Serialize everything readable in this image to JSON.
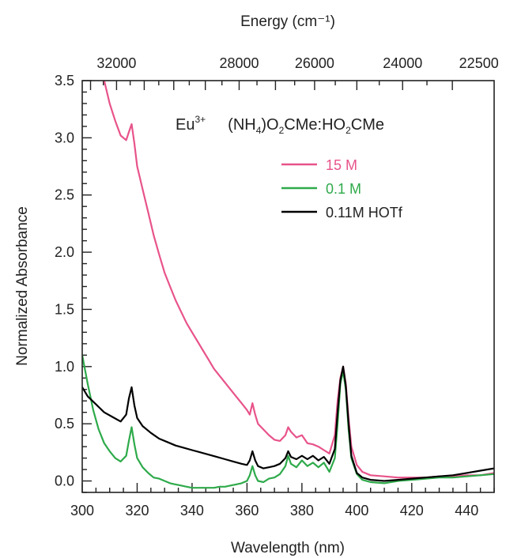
{
  "chart_data": {
    "type": "line",
    "xlabel": "Wavelength (nm)",
    "ylabel": "Normalized Absorbance",
    "x2label": "Energy (cm⁻¹)",
    "xlim": [
      300,
      450
    ],
    "ylim": [
      -0.1,
      3.5
    ],
    "x_ticks": [
      300,
      320,
      340,
      360,
      380,
      400,
      420,
      440
    ],
    "y_ticks": [
      0.0,
      0.5,
      1.0,
      1.5,
      2.0,
      2.5,
      3.0,
      3.5
    ],
    "y_tick_labels": [
      "0.0",
      "0.5",
      "1.0",
      "1.5",
      "2.0",
      "2.5",
      "3.0",
      "3.5"
    ],
    "x2_ticks": [
      32000,
      28000,
      26000,
      24000,
      22500
    ],
    "grid": false,
    "legend_position": "top-right",
    "annotation": {
      "element": "Eu",
      "charge": "3+",
      "formula_parts": [
        "(NH",
        "4",
        ")O",
        "2",
        "CMe:HO",
        "2",
        "CMe"
      ]
    },
    "series": [
      {
        "name": "15 M",
        "color": "#e8538a",
        "x": [
          308,
          310,
          312,
          314,
          316,
          317,
          318,
          319,
          320,
          322,
          324,
          326,
          328,
          330,
          332,
          334,
          336,
          338,
          340,
          342,
          344,
          346,
          348,
          350,
          352,
          354,
          356,
          358,
          360,
          361,
          362,
          363,
          364,
          366,
          368,
          370,
          372,
          374,
          375,
          376,
          378,
          380,
          382,
          384,
          386,
          388,
          390,
          392,
          393,
          394,
          395,
          396,
          397,
          398,
          400,
          402,
          405,
          410,
          415,
          420,
          425,
          430,
          435,
          440,
          445,
          450
        ],
        "y": [
          3.5,
          3.3,
          3.15,
          3.02,
          2.98,
          3.05,
          3.12,
          2.95,
          2.75,
          2.55,
          2.35,
          2.15,
          1.98,
          1.82,
          1.7,
          1.58,
          1.48,
          1.38,
          1.3,
          1.22,
          1.14,
          1.06,
          0.98,
          0.92,
          0.86,
          0.8,
          0.74,
          0.68,
          0.62,
          0.58,
          0.68,
          0.58,
          0.5,
          0.45,
          0.4,
          0.36,
          0.35,
          0.4,
          0.47,
          0.43,
          0.38,
          0.4,
          0.33,
          0.32,
          0.3,
          0.27,
          0.24,
          0.4,
          0.7,
          0.9,
          1.0,
          0.85,
          0.55,
          0.3,
          0.14,
          0.08,
          0.05,
          0.04,
          0.03,
          0.03,
          0.03,
          0.04,
          0.04,
          0.05,
          0.05,
          0.07
        ]
      },
      {
        "name": "0.1 M",
        "color": "#2eaa4a",
        "x": [
          300,
          302,
          304,
          306,
          308,
          310,
          312,
          314,
          316,
          317,
          318,
          319,
          320,
          322,
          324,
          326,
          328,
          330,
          332,
          334,
          336,
          338,
          340,
          342,
          344,
          346,
          348,
          350,
          352,
          354,
          356,
          358,
          360,
          361,
          362,
          363,
          364,
          366,
          368,
          370,
          372,
          374,
          375,
          376,
          378,
          380,
          382,
          384,
          386,
          388,
          390,
          392,
          393,
          394,
          395,
          396,
          397,
          398,
          400,
          402,
          405,
          410,
          415,
          420,
          425,
          430,
          435,
          440,
          445,
          450
        ],
        "y": [
          1.1,
          0.85,
          0.62,
          0.45,
          0.33,
          0.26,
          0.2,
          0.17,
          0.22,
          0.35,
          0.47,
          0.32,
          0.2,
          0.12,
          0.07,
          0.03,
          0.02,
          0.0,
          -0.02,
          -0.03,
          -0.04,
          -0.05,
          -0.06,
          -0.06,
          -0.06,
          -0.06,
          -0.06,
          -0.05,
          -0.05,
          -0.04,
          -0.03,
          -0.02,
          0.0,
          0.05,
          0.13,
          0.05,
          0.0,
          -0.01,
          0.02,
          0.03,
          0.06,
          0.13,
          0.22,
          0.15,
          0.12,
          0.18,
          0.13,
          0.16,
          0.12,
          0.16,
          0.08,
          0.2,
          0.5,
          0.85,
          0.96,
          0.8,
          0.45,
          0.2,
          0.06,
          0.01,
          -0.01,
          -0.02,
          0.0,
          0.01,
          0.02,
          0.03,
          0.03,
          0.04,
          0.05,
          0.06
        ]
      },
      {
        "name": "0.11M HOTf",
        "color": "#000000",
        "x": [
          300,
          302,
          305,
          308,
          311,
          314,
          316,
          317,
          318,
          319,
          320,
          322,
          325,
          328,
          331,
          334,
          337,
          340,
          343,
          346,
          349,
          352,
          355,
          358,
          360,
          361,
          362,
          363,
          364,
          366,
          368,
          370,
          372,
          374,
          375,
          376,
          378,
          380,
          382,
          384,
          386,
          388,
          390,
          392,
          393,
          394,
          395,
          396,
          397,
          398,
          400,
          402,
          405,
          410,
          415,
          420,
          425,
          430,
          435,
          440,
          445,
          450
        ],
        "y": [
          0.82,
          0.74,
          0.67,
          0.6,
          0.56,
          0.52,
          0.58,
          0.72,
          0.82,
          0.66,
          0.55,
          0.48,
          0.42,
          0.37,
          0.34,
          0.31,
          0.29,
          0.27,
          0.25,
          0.23,
          0.21,
          0.19,
          0.17,
          0.15,
          0.14,
          0.18,
          0.26,
          0.18,
          0.13,
          0.11,
          0.12,
          0.13,
          0.15,
          0.2,
          0.26,
          0.21,
          0.19,
          0.22,
          0.19,
          0.22,
          0.18,
          0.21,
          0.15,
          0.28,
          0.6,
          0.88,
          1.0,
          0.83,
          0.5,
          0.22,
          0.07,
          0.03,
          0.01,
          0.0,
          0.01,
          0.02,
          0.03,
          0.04,
          0.05,
          0.07,
          0.09,
          0.11
        ]
      }
    ]
  }
}
